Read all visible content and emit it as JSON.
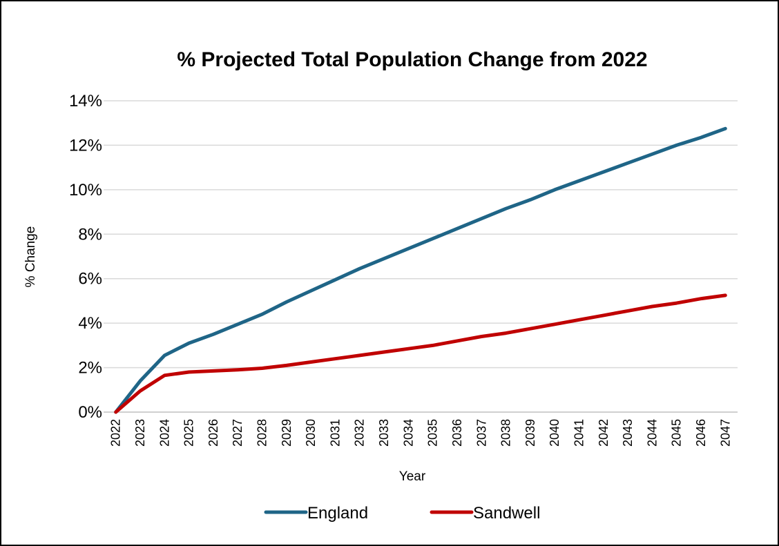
{
  "chart_data": {
    "type": "line",
    "title": "% Projected Total Population Change from 2022",
    "xlabel": "Year",
    "ylabel": "% Change",
    "ylim": [
      0,
      14
    ],
    "y_ticks": [
      "0%",
      "2%",
      "4%",
      "6%",
      "8%",
      "10%",
      "12%",
      "14%"
    ],
    "grid": true,
    "legend_position": "bottom",
    "x": [
      "2022",
      "2023",
      "2024",
      "2025",
      "2026",
      "2027",
      "2028",
      "2029",
      "2030",
      "2031",
      "2032",
      "2033",
      "2034",
      "2035",
      "2036",
      "2037",
      "2038",
      "2039",
      "2040",
      "2041",
      "2042",
      "2043",
      "2044",
      "2045",
      "2046",
      "2047"
    ],
    "series": [
      {
        "name": "England",
        "color": "#1F6587",
        "values": [
          0,
          1.4,
          2.55,
          3.1,
          3.5,
          3.95,
          4.4,
          4.95,
          5.45,
          5.95,
          6.45,
          6.9,
          7.35,
          7.8,
          8.25,
          8.7,
          9.15,
          9.55,
          10.0,
          10.4,
          10.8,
          11.2,
          11.6,
          12.0,
          12.35,
          12.75
        ]
      },
      {
        "name": "Sandwell",
        "color": "#C00000",
        "values": [
          0,
          0.95,
          1.65,
          1.8,
          1.85,
          1.9,
          1.97,
          2.1,
          2.25,
          2.4,
          2.55,
          2.7,
          2.85,
          3.0,
          3.2,
          3.4,
          3.55,
          3.75,
          3.95,
          4.15,
          4.35,
          4.55,
          4.75,
          4.9,
          5.1,
          5.25
        ]
      }
    ]
  }
}
